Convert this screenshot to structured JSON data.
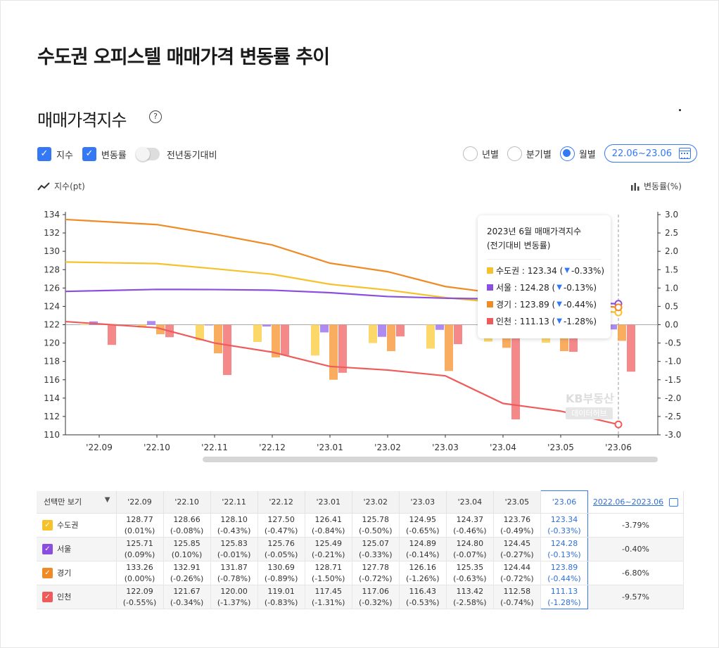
{
  "title": "수도권 오피스텔 매매가격 변동률 추이",
  "subtitle": "매매가격지수",
  "controls": {
    "index_label": "지수",
    "change_label": "변동률",
    "yoy_label": "전년동기대비",
    "yearly_label": "년별",
    "quarterly_label": "분기별",
    "monthly_label": "월별",
    "range_label": "22.06~23.06"
  },
  "axis_captions": {
    "left": "지수(pt)",
    "right": "변동률(%)"
  },
  "tooltip": {
    "title_line1": "2023년 6월 매매가격지수",
    "title_line2": "(전기대비 변동률)",
    "items": [
      {
        "prefix": "수도권 : 123.34 (",
        "arrow": "▼",
        "suffix": " -0.33%)"
      },
      {
        "prefix": "서울 : 124.28 (",
        "arrow": "▼",
        "suffix": " -0.13%)"
      },
      {
        "prefix": "경기 : 123.89 (",
        "arrow": "▼",
        "suffix": " -0.44%)"
      },
      {
        "prefix": "인천 : 111.13 (",
        "arrow": "▼",
        "suffix": " -1.28%)"
      }
    ]
  },
  "watermark": {
    "line1": "KB부동산",
    "line2": "데이터허브"
  },
  "chart_data": {
    "type": "line",
    "x": [
      "'22.09",
      "'22.10",
      "'22.11",
      "'22.12",
      "'23.01",
      "'23.02",
      "'23.03",
      "'23.04",
      "'23.05",
      "'23.06"
    ],
    "y_left_ticks": [
      "134",
      "132",
      "130",
      "128",
      "126",
      "124",
      "122",
      "120",
      "118",
      "116",
      "114",
      "112",
      "110"
    ],
    "y_right_ticks": [
      "3.0",
      "2.5",
      "2.0",
      "1.5",
      "1.0",
      "0.5",
      "0.0",
      "-0.5",
      "-1.0",
      "-1.5",
      "-2.0",
      "-2.5",
      "-3.0"
    ],
    "ylim_left": [
      110,
      134
    ],
    "ylim_right": [
      -3.0,
      3.0
    ],
    "series": [
      {
        "name": "수도권",
        "color": "#f5c22b",
        "barColor": "#fcd35a",
        "values": [
          128.77,
          128.66,
          128.1,
          127.5,
          126.41,
          125.78,
          124.95,
          124.37,
          123.76,
          123.34
        ],
        "changes": [
          0.01,
          -0.08,
          -0.43,
          -0.47,
          -0.84,
          -0.5,
          -0.65,
          -0.46,
          -0.49,
          -0.33
        ]
      },
      {
        "name": "서울",
        "color": "#8b4fe0",
        "barColor": "#a67df0",
        "values": [
          125.71,
          125.85,
          125.83,
          125.76,
          125.49,
          125.07,
          124.89,
          124.8,
          124.45,
          124.28
        ],
        "changes": [
          0.09,
          0.1,
          -0.01,
          -0.05,
          -0.21,
          -0.33,
          -0.14,
          -0.07,
          -0.27,
          -0.13
        ]
      },
      {
        "name": "경기",
        "color": "#f08a24",
        "barColor": "#f7a450",
        "values": [
          133.26,
          132.91,
          131.87,
          130.69,
          128.71,
          127.78,
          126.16,
          125.35,
          124.44,
          123.89
        ],
        "changes": [
          0.0,
          -0.26,
          -0.78,
          -0.89,
          -1.5,
          -0.72,
          -1.26,
          -0.63,
          -0.72,
          -0.44
        ]
      },
      {
        "name": "인천",
        "color": "#ef5b5b",
        "barColor": "#f47c7c",
        "values": [
          122.09,
          121.67,
          120.0,
          119.01,
          117.45,
          117.06,
          116.43,
          113.42,
          112.58,
          111.13
        ],
        "changes": [
          -0.55,
          -0.34,
          -1.37,
          -0.83,
          -1.31,
          -0.32,
          -0.53,
          -2.58,
          -0.74,
          -1.28
        ]
      }
    ]
  },
  "table": {
    "header_first": "선택만 보기",
    "header_caret": "▼",
    "columns": [
      "'22.09",
      "'22.10",
      "'22.11",
      "'22.12",
      "'23.01",
      "'23.02",
      "'23.03",
      "'23.04",
      "'23.05",
      "'23.06"
    ],
    "range_header": "2022.06~2023.06",
    "rows": [
      {
        "name": "수도권",
        "color": "#f5c22b",
        "values": [
          "128.77",
          "128.66",
          "128.10",
          "127.50",
          "126.41",
          "125.78",
          "124.95",
          "124.37",
          "123.76",
          "123.34"
        ],
        "changes": [
          "(0.01%)",
          "(-0.08%)",
          "(-0.43%)",
          "(-0.47%)",
          "(-0.84%)",
          "(-0.50%)",
          "(-0.65%)",
          "(-0.46%)",
          "(-0.49%)",
          "(-0.33%)"
        ],
        "total": "-3.79%"
      },
      {
        "name": "서울",
        "color": "#8b4fe0",
        "values": [
          "125.71",
          "125.85",
          "125.83",
          "125.76",
          "125.49",
          "125.07",
          "124.89",
          "124.80",
          "124.45",
          "124.28"
        ],
        "changes": [
          "(0.09%)",
          "(0.10%)",
          "(-0.01%)",
          "(-0.05%)",
          "(-0.21%)",
          "(-0.33%)",
          "(-0.14%)",
          "(-0.07%)",
          "(-0.27%)",
          "(-0.13%)"
        ],
        "total": "-0.40%"
      },
      {
        "name": "경기",
        "color": "#f08a24",
        "values": [
          "133.26",
          "132.91",
          "131.87",
          "130.69",
          "128.71",
          "127.78",
          "126.16",
          "125.35",
          "124.44",
          "123.89"
        ],
        "changes": [
          "(0.00%)",
          "(-0.26%)",
          "(-0.78%)",
          "(-0.89%)",
          "(-1.50%)",
          "(-0.72%)",
          "(-1.26%)",
          "(-0.63%)",
          "(-0.72%)",
          "(-0.44%)"
        ],
        "total": "-6.80%"
      },
      {
        "name": "인천",
        "color": "#ef5b5b",
        "values": [
          "122.09",
          "121.67",
          "120.00",
          "119.01",
          "117.45",
          "117.06",
          "116.43",
          "113.42",
          "112.58",
          "111.13"
        ],
        "changes": [
          "(-0.55%)",
          "(-0.34%)",
          "(-1.37%)",
          "(-0.83%)",
          "(-1.31%)",
          "(-0.32%)",
          "(-0.53%)",
          "(-2.58%)",
          "(-0.74%)",
          "(-1.28%)"
        ],
        "total": "-9.57%"
      }
    ]
  }
}
